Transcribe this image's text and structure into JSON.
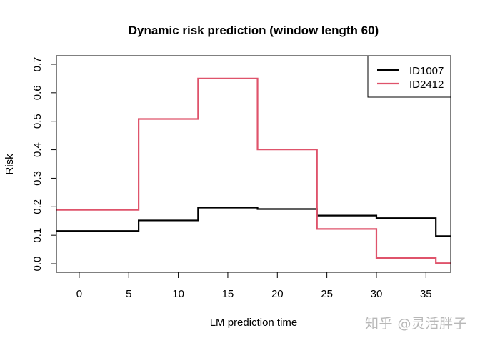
{
  "chart_data": {
    "type": "line",
    "subtype": "step",
    "title": "Dynamic risk prediction (window length 60)",
    "xlabel": "LM prediction time",
    "ylabel": "Risk",
    "xlim": [
      -2.3,
      37.5
    ],
    "ylim": [
      -0.03,
      0.73
    ],
    "x_ticks": [
      0,
      5,
      10,
      15,
      20,
      25,
      30,
      35
    ],
    "y_ticks": [
      0.0,
      0.1,
      0.2,
      0.3,
      0.4,
      0.5,
      0.6,
      0.7
    ],
    "x_tick_labels": [
      "0",
      "5",
      "10",
      "15",
      "20",
      "25",
      "30",
      "35"
    ],
    "y_tick_labels": [
      "0.0",
      "0.1",
      "0.2",
      "0.3",
      "0.4",
      "0.5",
      "0.6",
      "0.7"
    ],
    "grid": false,
    "legend_position": "topright",
    "step_breaks": [
      -2.3,
      6,
      12,
      18,
      24,
      30,
      36,
      37.5
    ],
    "series": [
      {
        "name": "ID1007",
        "color": "#000000",
        "x": [
          0,
          6,
          12,
          18,
          24,
          30,
          36
        ],
        "values": [
          0.115,
          0.152,
          0.197,
          0.192,
          0.169,
          0.16,
          0.097
        ]
      },
      {
        "name": "ID2412",
        "color": "#DF536B",
        "x": [
          0,
          6,
          12,
          18,
          24,
          30,
          36
        ],
        "values": [
          0.189,
          0.508,
          0.65,
          0.401,
          0.122,
          0.02,
          0.002
        ]
      }
    ]
  },
  "watermark": "知乎 @灵活胖子"
}
